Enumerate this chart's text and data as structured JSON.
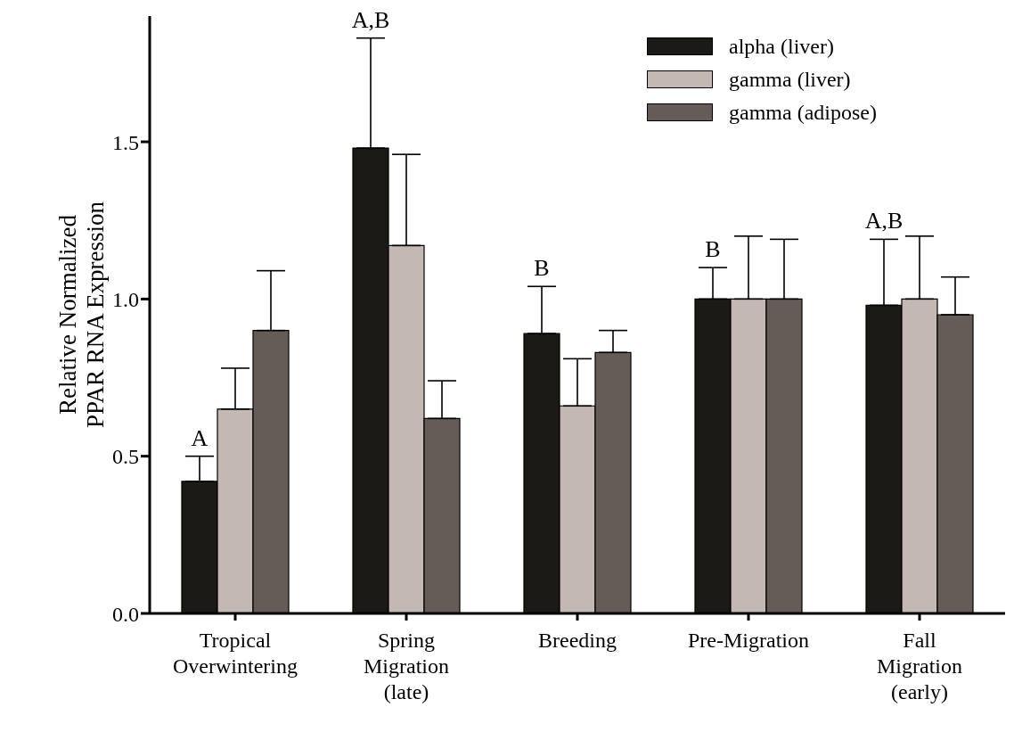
{
  "chart_data": {
    "type": "bar",
    "ylabel": "Relative Normalized PPAR RNA Expression",
    "categories": [
      "Tropical Overwintering",
      "Spring Migration (late)",
      "Breeding",
      "Pre-Migration",
      "Fall Migration (early)"
    ],
    "series": [
      {
        "name": "alpha (liver)",
        "color": "#1c1a17",
        "values": [
          0.42,
          1.48,
          0.89,
          1.0,
          0.98
        ],
        "errors": [
          [
            0.42,
            0.5
          ],
          [
            1.48,
            1.83
          ],
          [
            0.89,
            1.04
          ],
          [
            1.0,
            1.1
          ],
          [
            0.98,
            1.19
          ]
        ]
      },
      {
        "name": "gamma (liver)",
        "color": "#c4b8b4",
        "values": [
          0.65,
          1.17,
          0.66,
          1.0,
          1.0
        ],
        "errors": [
          [
            0.65,
            0.78
          ],
          [
            1.17,
            1.46
          ],
          [
            0.66,
            0.81
          ],
          [
            1.0,
            1.2
          ],
          [
            1.0,
            1.2
          ]
        ]
      },
      {
        "name": "gamma (adipose)",
        "color": "#655c57",
        "values": [
          0.9,
          0.62,
          0.83,
          1.0,
          0.95
        ],
        "errors": [
          [
            0.9,
            1.09
          ],
          [
            0.62,
            0.74
          ],
          [
            0.83,
            0.9
          ],
          [
            1.0,
            1.19
          ],
          [
            0.95,
            1.07
          ]
        ]
      }
    ],
    "ylim": [
      0,
      1.9
    ],
    "yticks": [
      {
        "value": 0,
        "label": "0.0"
      },
      0.5,
      {
        "value": 1,
        "label": "1.0"
      },
      1.5
    ],
    "grid": false,
    "legend": "top right",
    "annotations": [
      "A",
      "A,B",
      "B",
      "B",
      "A,B"
    ]
  }
}
